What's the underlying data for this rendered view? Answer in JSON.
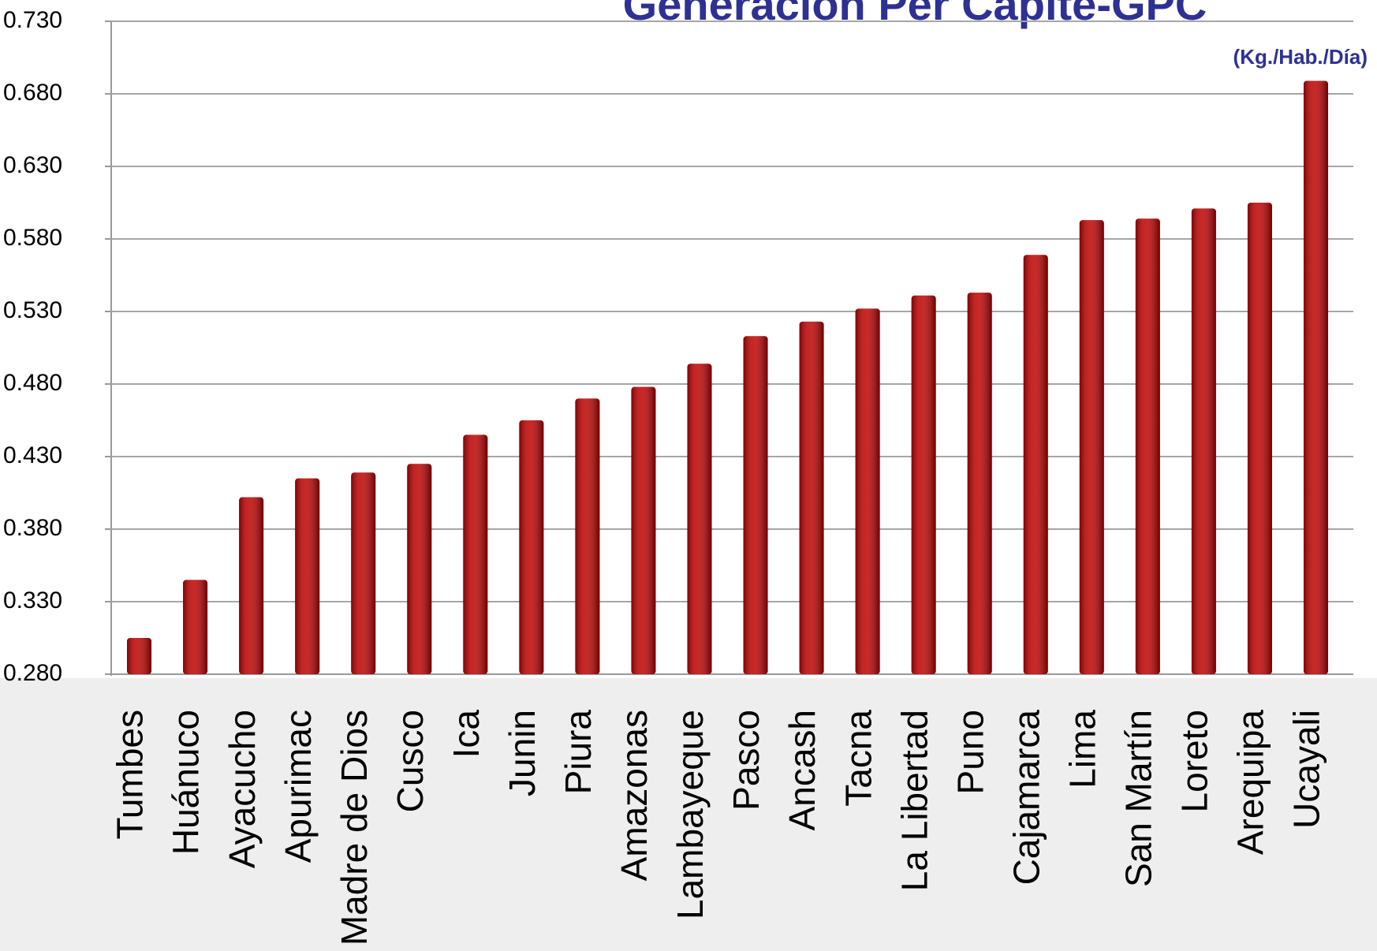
{
  "chart_data": {
    "type": "bar",
    "title": "Generación Per Cápite-GPC",
    "subtitle": "(Kg./Hab./Día)",
    "categories": [
      "Tumbes",
      "Huánuco",
      "Ayacucho",
      "Apurimac",
      "Madre de Dios",
      "Cusco",
      "Ica",
      "Junin",
      "Piura",
      "Amazonas",
      "Lambayeque",
      "Pasco",
      "Ancash",
      "Tacna",
      "La Libertad",
      "Puno",
      "Cajamarca",
      "Lima",
      "San Martín",
      "Loreto",
      "Arequipa",
      "Ucayali"
    ],
    "values": [
      0.305,
      0.345,
      0.402,
      0.415,
      0.419,
      0.425,
      0.445,
      0.455,
      0.47,
      0.478,
      0.494,
      0.513,
      0.523,
      0.532,
      0.541,
      0.543,
      0.569,
      0.593,
      0.594,
      0.601,
      0.605,
      0.689
    ],
    "color": "#c00000",
    "ylim": [
      0.28,
      0.73
    ],
    "yticks": [
      {
        "value": 0.28,
        "label": "0.280"
      },
      {
        "value": 0.33,
        "label": "0.330"
      },
      {
        "value": 0.38,
        "label": "0.380"
      },
      {
        "value": 0.43,
        "label": "0.430"
      },
      {
        "value": 0.48,
        "label": "0.480"
      },
      {
        "value": 0.53,
        "label": "0.530"
      },
      {
        "value": 0.58,
        "label": "0.580"
      },
      {
        "value": 0.63,
        "label": "0.630"
      },
      {
        "value": 0.68,
        "label": "0.680"
      },
      {
        "value": 0.73,
        "label": "0.730"
      }
    ],
    "grid": true
  }
}
